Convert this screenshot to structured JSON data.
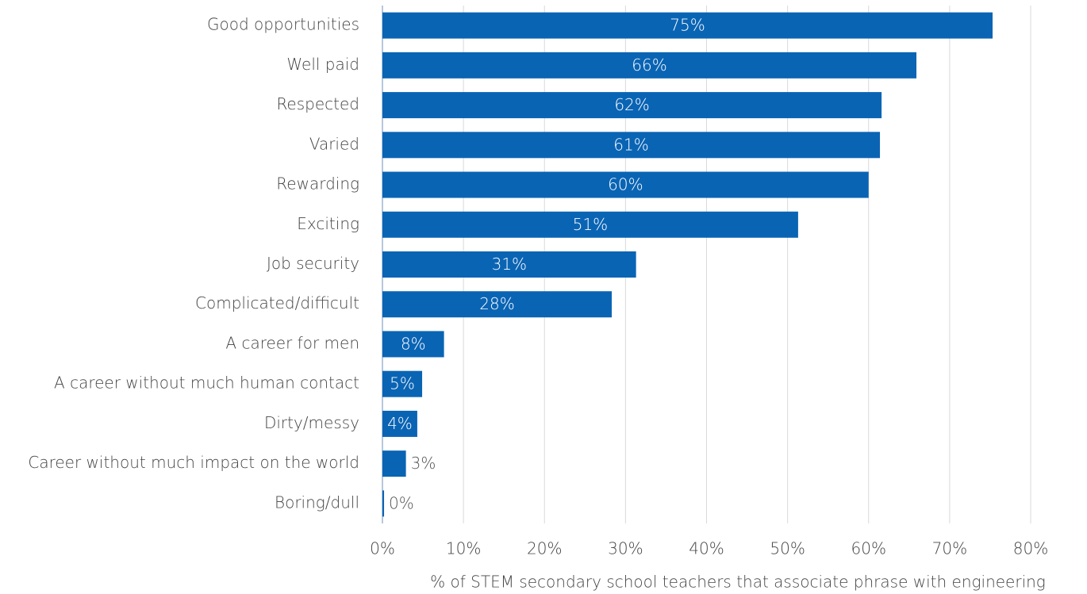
{
  "chart_data": {
    "type": "barh",
    "categories": [
      "Good opportunities",
      "Well paid",
      "Respected",
      "Varied",
      "Rewarding",
      "Exciting",
      "Job security",
      "Complicated/difficult",
      "A career for men",
      "A career without much human contact",
      "Dirty/messy",
      "Career without much impact on the world",
      "Boring/dull"
    ],
    "values": [
      75.3,
      65.9,
      61.6,
      61.4,
      60.0,
      51.3,
      31.3,
      28.3,
      7.6,
      4.9,
      4.3,
      2.9,
      0.2
    ],
    "value_labels": [
      "75%",
      "66%",
      "62%",
      "61%",
      "60%",
      "51%",
      "31%",
      "28%",
      "8%",
      "5%",
      "4%",
      "3%",
      "0%"
    ],
    "color": "#0a64b4",
    "xlim": [
      0,
      80
    ],
    "xticks": [
      {
        "value": 0,
        "label": "0%"
      },
      {
        "value": 10,
        "label": "10%"
      },
      {
        "value": 20,
        "label": "20%"
      },
      {
        "value": 30,
        "label": "30%"
      },
      {
        "value": 40,
        "label": "40%"
      },
      {
        "value": 50,
        "label": "50%"
      },
      {
        "value": 60,
        "label": "60%"
      },
      {
        "value": 70,
        "label": "70%"
      },
      {
        "value": 80,
        "label": "80%"
      }
    ],
    "xlabel": "% of STEM secondary school teachers that associate phrase with engineering",
    "grid": true
  }
}
